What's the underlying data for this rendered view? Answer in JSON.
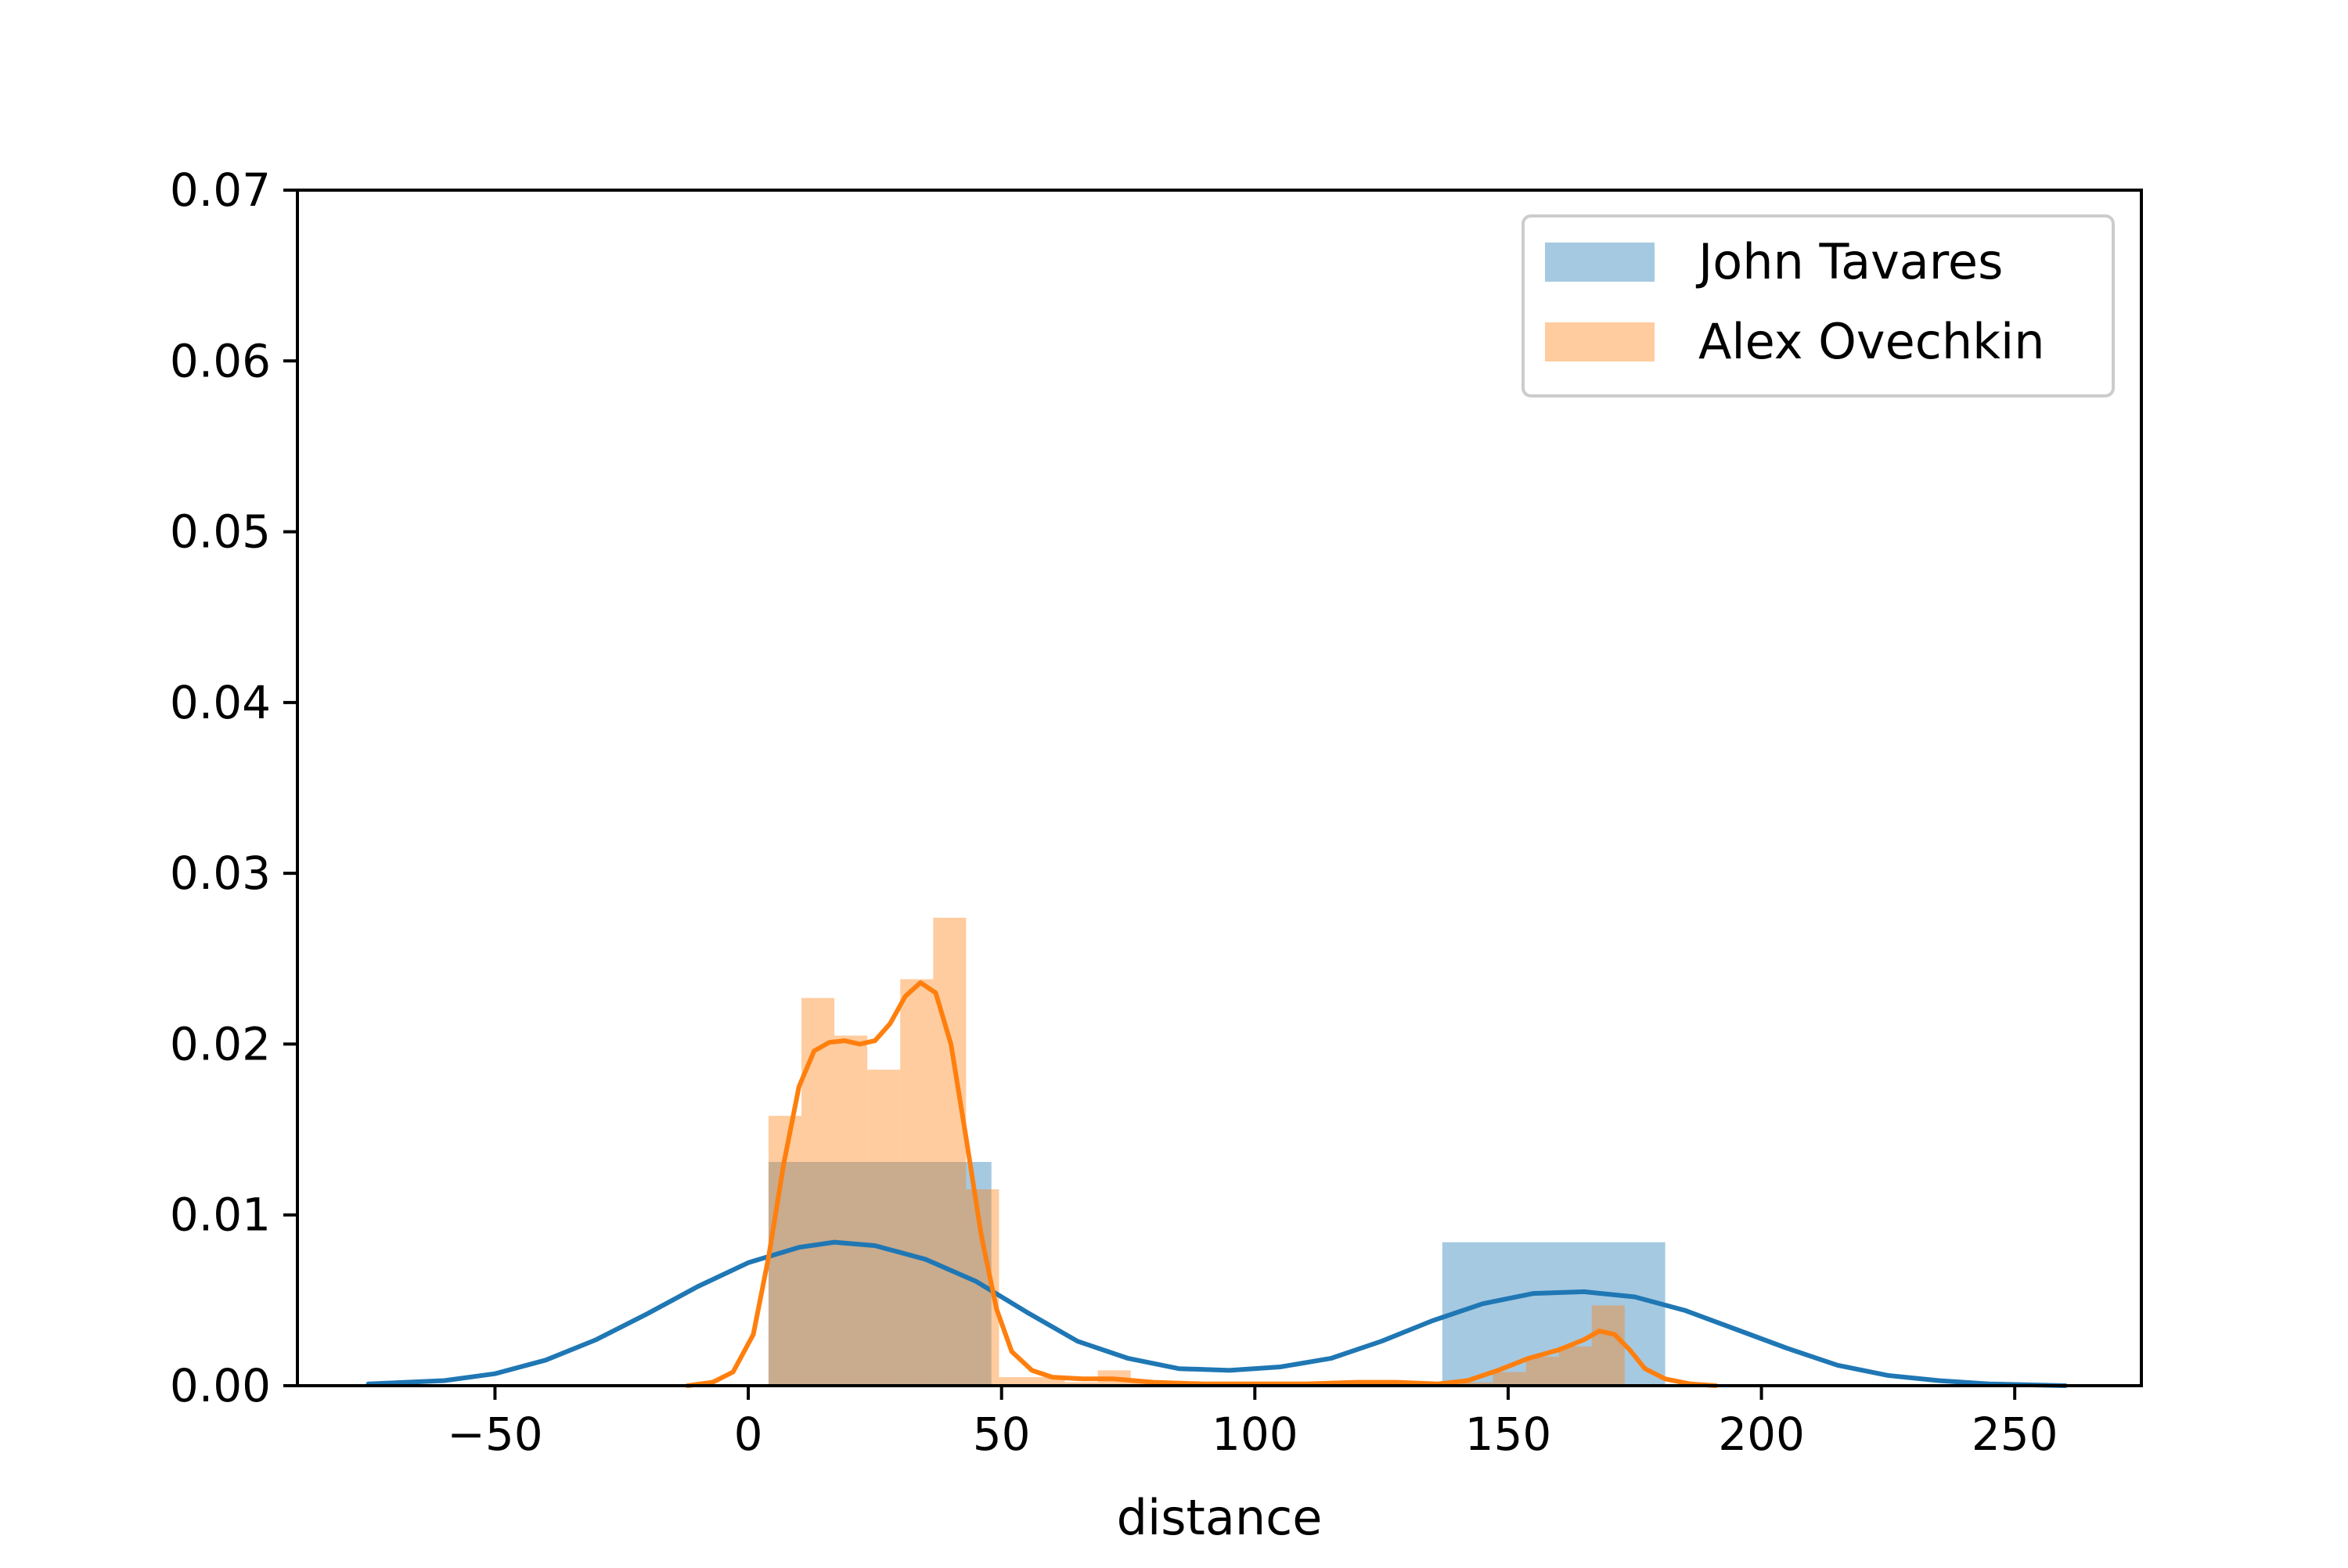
{
  "chart_data": {
    "type": "histogram",
    "title": "",
    "xlabel": "distance",
    "ylabel": "",
    "xlim": [
      -89,
      275
    ],
    "ylim": [
      0,
      0.07
    ],
    "x_ticks": [
      -50,
      0,
      50,
      100,
      150,
      200,
      250
    ],
    "x_tick_labels": [
      "−50",
      "0",
      "50",
      "100",
      "150",
      "200",
      "250"
    ],
    "y_ticks": [
      0,
      0.01,
      0.02,
      0.03,
      0.04,
      0.05,
      0.06,
      0.07
    ],
    "y_tick_labels": [
      "0.00",
      "0.01",
      "0.02",
      "0.03",
      "0.04",
      "0.05",
      "0.06",
      "0.07"
    ],
    "grid": false,
    "legend_position": "top-right",
    "series": [
      {
        "name": "John Tavares",
        "color": "#1f77b4",
        "bar_opacity": 0.4,
        "histogram_bins": [
          {
            "x0": 4,
            "x1": 48,
            "density": 0.0131
          },
          {
            "x0": 48,
            "x1": 93,
            "density": 0
          },
          {
            "x0": 93,
            "x1": 137,
            "density": 0
          },
          {
            "x0": 137,
            "x1": 181,
            "density": 0.0084
          }
        ],
        "kde": [
          [
            -75,
            0.0001
          ],
          [
            -60,
            0.0003
          ],
          [
            -50,
            0.0007
          ],
          [
            -40,
            0.0015
          ],
          [
            -30,
            0.0027
          ],
          [
            -20,
            0.0042
          ],
          [
            -10,
            0.0058
          ],
          [
            0,
            0.0072
          ],
          [
            10,
            0.0081
          ],
          [
            17,
            0.0084
          ],
          [
            25,
            0.0082
          ],
          [
            35,
            0.0074
          ],
          [
            45,
            0.0061
          ],
          [
            55,
            0.0043
          ],
          [
            65,
            0.0026
          ],
          [
            75,
            0.0016
          ],
          [
            85,
            0.001
          ],
          [
            95,
            0.0009
          ],
          [
            105,
            0.0011
          ],
          [
            115,
            0.0016
          ],
          [
            125,
            0.0026
          ],
          [
            135,
            0.0038
          ],
          [
            145,
            0.0048
          ],
          [
            155,
            0.0054
          ],
          [
            165,
            0.0055
          ],
          [
            175,
            0.0052
          ],
          [
            185,
            0.0044
          ],
          [
            195,
            0.0033
          ],
          [
            205,
            0.0022
          ],
          [
            215,
            0.0012
          ],
          [
            225,
            0.0006
          ],
          [
            235,
            0.0003
          ],
          [
            245,
            0.0001
          ],
          [
            260,
            0
          ]
        ]
      },
      {
        "name": "Alex Ovechkin",
        "color": "#ff7f0e",
        "bar_opacity": 0.4,
        "histogram_bins": [
          {
            "x0": 4,
            "x1": 10.5,
            "density": 0.0158
          },
          {
            "x0": 10.5,
            "x1": 17,
            "density": 0.0227
          },
          {
            "x0": 17,
            "x1": 23.5,
            "density": 0.0205
          },
          {
            "x0": 23.5,
            "x1": 30,
            "density": 0.0185
          },
          {
            "x0": 30,
            "x1": 36.5,
            "density": 0.0238
          },
          {
            "x0": 36.5,
            "x1": 43,
            "density": 0.0274
          },
          {
            "x0": 43,
            "x1": 49.5,
            "density": 0.0115
          },
          {
            "x0": 49.5,
            "x1": 56,
            "density": 0.0005
          },
          {
            "x0": 56,
            "x1": 62.5,
            "density": 0.0005
          },
          {
            "x0": 62.5,
            "x1": 69,
            "density": 0.0002
          },
          {
            "x0": 69,
            "x1": 75.5,
            "density": 0.0009
          },
          {
            "x0": 75.5,
            "x1": 82,
            "density": 0.0003
          },
          {
            "x0": 82,
            "x1": 88.5,
            "density": 0.0002
          },
          {
            "x0": 88.5,
            "x1": 95,
            "density": 0.0002
          },
          {
            "x0": 95,
            "x1": 101.5,
            "density": 0.0002
          },
          {
            "x0": 101.5,
            "x1": 108,
            "density": 0.0002
          },
          {
            "x0": 108,
            "x1": 114.5,
            "density": 0.0002
          },
          {
            "x0": 114.5,
            "x1": 121,
            "density": 0.0002
          },
          {
            "x0": 121,
            "x1": 127.5,
            "density": 0.0002
          },
          {
            "x0": 127.5,
            "x1": 134,
            "density": 0.0002
          },
          {
            "x0": 134,
            "x1": 140.5,
            "density": 0.0002
          },
          {
            "x0": 140.5,
            "x1": 147,
            "density": 0.0002
          },
          {
            "x0": 147,
            "x1": 153.5,
            "density": 0.0008
          },
          {
            "x0": 153.5,
            "x1": 160,
            "density": 0.0017
          },
          {
            "x0": 160,
            "x1": 166.5,
            "density": 0.0023
          },
          {
            "x0": 166.5,
            "x1": 173,
            "density": 0.0047
          }
        ],
        "kde": [
          [
            -12,
            0
          ],
          [
            -7,
            0.0002
          ],
          [
            -3,
            0.0008
          ],
          [
            1,
            0.003
          ],
          [
            4,
            0.0075
          ],
          [
            7,
            0.013
          ],
          [
            10,
            0.0175
          ],
          [
            13,
            0.0196
          ],
          [
            16,
            0.0201
          ],
          [
            19,
            0.0202
          ],
          [
            22,
            0.02
          ],
          [
            25,
            0.0202
          ],
          [
            28,
            0.0212
          ],
          [
            31,
            0.0228
          ],
          [
            34,
            0.0236
          ],
          [
            37,
            0.023
          ],
          [
            40,
            0.02
          ],
          [
            43,
            0.0145
          ],
          [
            46,
            0.0088
          ],
          [
            49,
            0.0045
          ],
          [
            52,
            0.002
          ],
          [
            56,
            0.0009
          ],
          [
            60,
            0.0005
          ],
          [
            66,
            0.0004
          ],
          [
            72,
            0.0004
          ],
          [
            80,
            0.0002
          ],
          [
            90,
            0.0001
          ],
          [
            100,
            0.0001
          ],
          [
            110,
            0.0001
          ],
          [
            120,
            0.0002
          ],
          [
            128,
            0.0002
          ],
          [
            136,
            0.0001
          ],
          [
            142,
            0.0003
          ],
          [
            148,
            0.0009
          ],
          [
            154,
            0.0016
          ],
          [
            160,
            0.0021
          ],
          [
            165,
            0.0027
          ],
          [
            168,
            0.0032
          ],
          [
            171,
            0.003
          ],
          [
            174,
            0.0021
          ],
          [
            177,
            0.001
          ],
          [
            181,
            0.0004
          ],
          [
            186,
            0.0001
          ],
          [
            191,
            0
          ]
        ]
      }
    ]
  }
}
